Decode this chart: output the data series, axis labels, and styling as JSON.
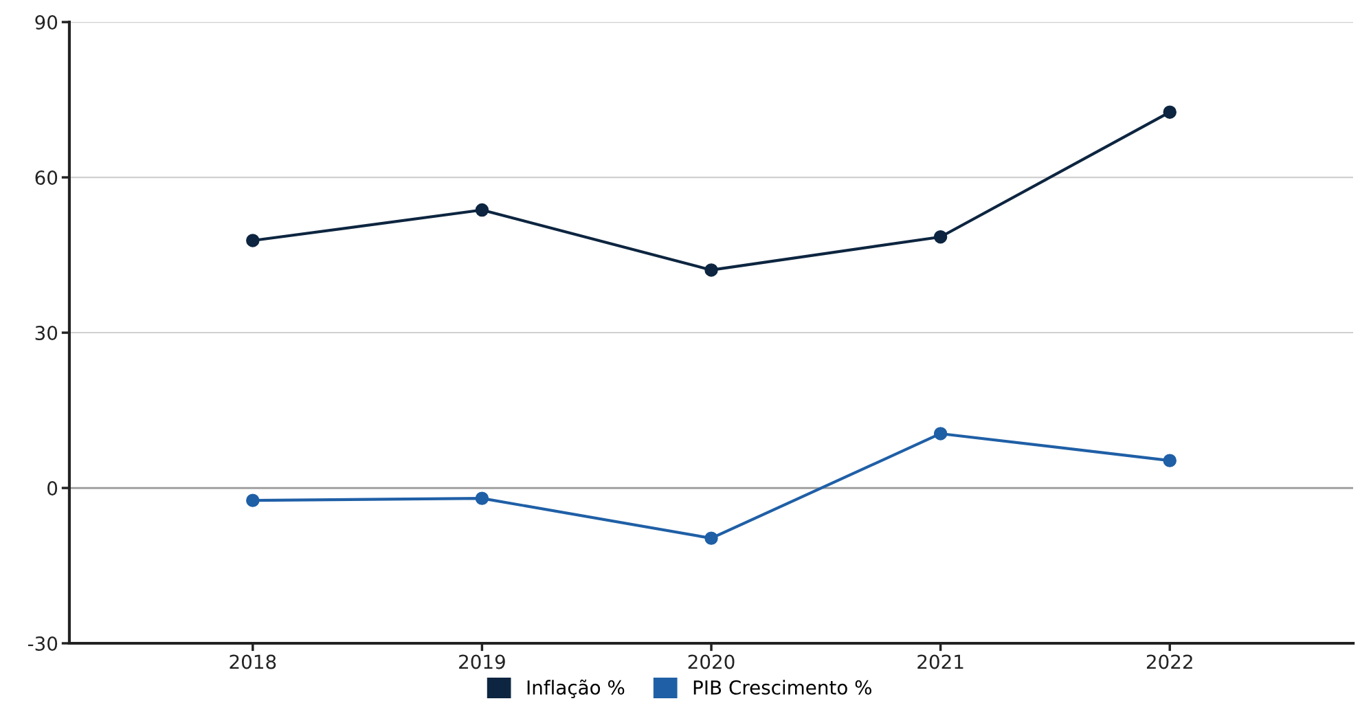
{
  "chart_data": {
    "type": "line",
    "categories": [
      "2018",
      "2019",
      "2020",
      "2021",
      "2022"
    ],
    "series": [
      {
        "name": "Inflação %",
        "color": "#0d2540",
        "values": [
          47.8,
          53.7,
          42.1,
          48.5,
          72.6
        ]
      },
      {
        "name": "PIB Crescimento %",
        "color": "#1f5fa6",
        "values": [
          -2.4,
          -2.0,
          -9.7,
          10.5,
          5.3
        ]
      }
    ],
    "ylim": [
      -30,
      90
    ],
    "yticks": [
      -30,
      0,
      30,
      60,
      90
    ],
    "grid": "y",
    "legend": "bottom",
    "marker": "circle",
    "line_style": "solid",
    "ref_lines": [
      {
        "axis": "y",
        "value": 0,
        "label": null,
        "color": "#999999"
      }
    ]
  }
}
